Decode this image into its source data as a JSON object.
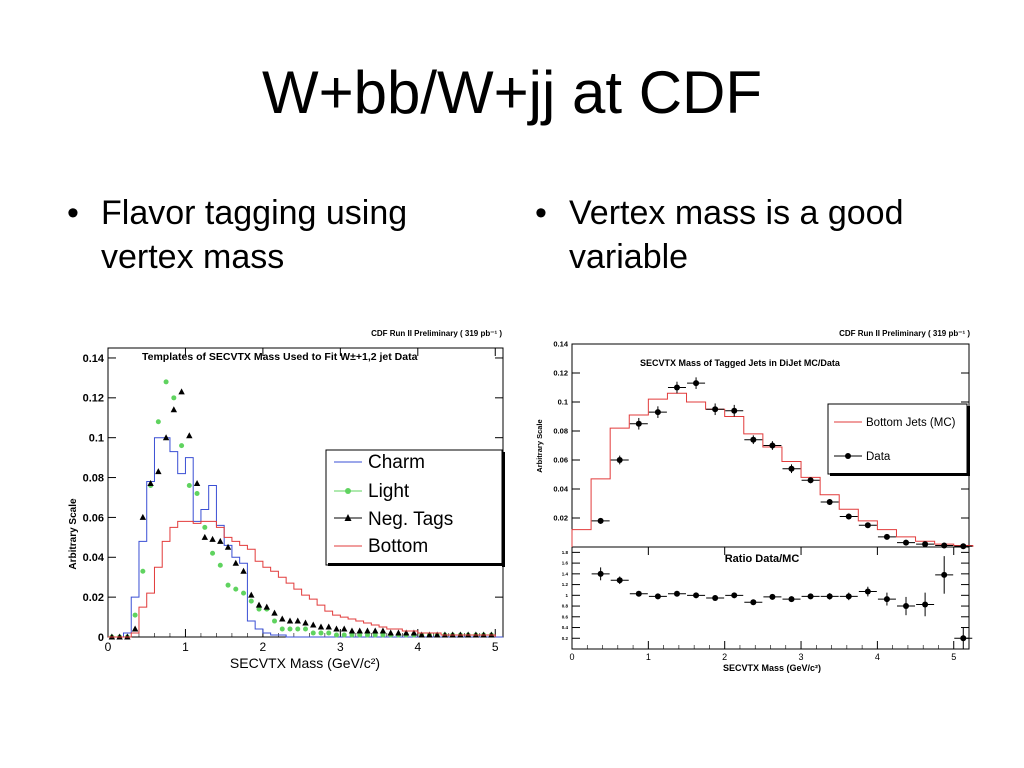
{
  "slide": {
    "title": "W+bb/W+jj at CDF",
    "bullets": [
      {
        "text_line1": "Flavor tagging using",
        "text_line2": "vertex mass"
      },
      {
        "text_line1": "Vertex mass is a good",
        "text_line2": "variable"
      }
    ],
    "bullet_glyph": "•"
  },
  "chart_data": [
    {
      "type": "line",
      "corner_label": "CDF Run II Preliminary ( 319 pb⁻¹ )",
      "title": "Templates of SECVTX Mass Used to Fit W±+1,2 jet Data",
      "xlabel": "SECVTX Mass (GeV/c²)",
      "ylabel": "Arbitrary Scale",
      "xlim": [
        0,
        5.1
      ],
      "ylim": [
        0,
        0.145
      ],
      "xticks": [
        0,
        1,
        2,
        3,
        4,
        5
      ],
      "xtick_labels": [
        "0",
        "1",
        "2",
        "3",
        "4",
        "5"
      ],
      "yticks": [
        0,
        0.02,
        0.04,
        0.06,
        0.08,
        0.1,
        0.12,
        0.14
      ],
      "ytick_labels": [
        "0",
        "0.02",
        "0.04",
        "0.06",
        "0.08",
        "0.1",
        "0.12",
        "0.14"
      ],
      "legend_position": "top-right",
      "bin_width": 0.1,
      "series": [
        {
          "name": "Charm",
          "style": "histogram",
          "color": "#3a4fd4",
          "values": [
            0,
            0,
            0.002,
            0.02,
            0.048,
            0.078,
            0.1,
            0.1,
            0.093,
            0.082,
            0.09,
            0.058,
            0.064,
            0.076,
            0.056,
            0.046,
            0.04,
            0.037,
            0.008,
            0.004,
            0.002,
            0.001,
            0.001,
            0,
            0,
            0,
            0,
            0,
            0,
            0,
            0,
            0,
            0,
            0,
            0,
            0,
            0,
            0,
            0,
            0,
            0,
            0,
            0,
            0,
            0,
            0,
            0,
            0,
            0,
            0,
            0
          ]
        },
        {
          "name": "Light",
          "style": "markers",
          "color": "#5fd35f",
          "values": [
            0,
            0,
            0,
            0.011,
            0.033,
            0.076,
            0.108,
            0.128,
            0.12,
            0.096,
            0.076,
            0.072,
            0.055,
            0.042,
            0.036,
            0.026,
            0.024,
            0.022,
            0.018,
            0.014,
            0.014,
            0.008,
            0.004,
            0.004,
            0.004,
            0.004,
            0.002,
            0.002,
            0.002,
            0.001,
            0.001,
            0.001,
            0.001,
            0.001,
            0.001,
            0.001,
            0.001,
            0.001,
            0.001,
            0.001,
            0.001,
            0.001,
            0.001,
            0.001,
            0.001,
            0.001,
            0.001,
            0.001,
            0.001,
            0.001
          ]
        },
        {
          "name": "Neg. Tags",
          "style": "markers",
          "color": "#000000",
          "values": [
            0,
            0,
            0,
            0.004,
            0.06,
            0.077,
            0.083,
            0.1,
            0.114,
            0.123,
            0.101,
            0.077,
            0.05,
            0.049,
            0.048,
            0.045,
            0.037,
            0.033,
            0.021,
            0.016,
            0.015,
            0.012,
            0.009,
            0.008,
            0.008,
            0.007,
            0.006,
            0.005,
            0.005,
            0.004,
            0.004,
            0.003,
            0.003,
            0.003,
            0.003,
            0.003,
            0.002,
            0.002,
            0.002,
            0.002,
            0.001,
            0.001,
            0.001,
            0.001,
            0.001,
            0.001,
            0.001,
            0.001,
            0.001,
            0.001
          ]
        },
        {
          "name": "Bottom",
          "style": "histogram",
          "color": "#e23b3b",
          "values": [
            0,
            0,
            0,
            0.002,
            0.015,
            0.022,
            0.035,
            0.048,
            0.055,
            0.058,
            0.058,
            0.057,
            0.058,
            0.058,
            0.055,
            0.05,
            0.048,
            0.046,
            0.044,
            0.038,
            0.035,
            0.033,
            0.03,
            0.027,
            0.024,
            0.021,
            0.019,
            0.016,
            0.013,
            0.011,
            0.01,
            0.009,
            0.008,
            0.007,
            0.006,
            0.005,
            0.004,
            0.004,
            0.003,
            0.003,
            0.002,
            0.002,
            0.002,
            0.001,
            0.001,
            0.001,
            0.001,
            0.001,
            0.001,
            0.001
          ]
        }
      ]
    },
    {
      "type": "line",
      "corner_label": "CDF Run II Preliminary ( 319 pb⁻¹ )",
      "title": "SECVTX Mass of Tagged Jets in DiJet MC/Data",
      "ylabel": "Arbitrary Scale",
      "xlim": [
        0,
        5.2
      ],
      "ylim": [
        0,
        0.14
      ],
      "yticks": [
        0.02,
        0.04,
        0.06,
        0.08,
        0.1,
        0.12,
        0.14
      ],
      "ytick_labels": [
        "0.02",
        "0.04",
        "0.06",
        "0.08",
        "0.1",
        "0.12",
        "0.14"
      ],
      "legend_position": "right",
      "bin_edges": [
        0,
        0.25,
        0.5,
        0.75,
        1.0,
        1.25,
        1.5,
        1.75,
        2.0,
        2.25,
        2.5,
        2.75,
        3.0,
        3.25,
        3.5,
        3.75,
        4.0,
        4.25,
        4.5,
        4.75,
        5.0,
        5.25
      ],
      "series": [
        {
          "name": "Bottom Jets (MC)",
          "style": "histogram",
          "color": "#e23b3b",
          "values": [
            0.012,
            0.047,
            0.082,
            0.091,
            0.102,
            0.106,
            0.1,
            0.095,
            0.09,
            0.078,
            0.069,
            0.059,
            0.048,
            0.036,
            0.026,
            0.018,
            0.012,
            0.007,
            0.004,
            0.002,
            0.001
          ]
        },
        {
          "name": "Data",
          "style": "points_with_errors",
          "color": "#000000",
          "x": [
            0.375,
            0.625,
            0.875,
            1.125,
            1.375,
            1.625,
            1.875,
            2.125,
            2.375,
            2.625,
            2.875,
            3.125,
            3.375,
            3.625,
            3.875,
            4.125,
            4.375,
            4.625,
            4.875,
            5.125
          ],
          "y": [
            0.018,
            0.06,
            0.085,
            0.093,
            0.11,
            0.113,
            0.095,
            0.094,
            0.074,
            0.07,
            0.054,
            0.046,
            0.031,
            0.021,
            0.015,
            0.007,
            0.003,
            0.002,
            0.001,
            0.0005
          ],
          "yerr": [
            0.002,
            0.003,
            0.004,
            0.004,
            0.004,
            0.004,
            0.004,
            0.004,
            0.003,
            0.003,
            0.003,
            0.002,
            0.002,
            0.002,
            0.001,
            0.001,
            0.001,
            0.001,
            0.001,
            0.0005
          ]
        }
      ]
    },
    {
      "type": "scatter",
      "title": "Ratio Data/MC",
      "xlabel": "SECVTX Mass (GeV/c²)",
      "xlim": [
        0,
        5.2
      ],
      "ylim": [
        0,
        1.9
      ],
      "xticks": [
        0,
        1,
        2,
        3,
        4,
        5
      ],
      "xtick_labels": [
        "0",
        "1",
        "2",
        "3",
        "4",
        "5"
      ],
      "yticks": [
        0.2,
        0.4,
        0.6,
        0.8,
        1.0,
        1.2,
        1.4,
        1.6,
        1.8
      ],
      "ytick_labels": [
        "0.2",
        "0.4",
        "0.6",
        "0.8",
        "1",
        "1.2",
        "1.4",
        "1.6",
        "1.8"
      ],
      "series": [
        {
          "name": "Ratio",
          "style": "points_with_errors",
          "color": "#000000",
          "x": [
            0.375,
            0.625,
            0.875,
            1.125,
            1.375,
            1.625,
            1.875,
            2.125,
            2.375,
            2.625,
            2.875,
            3.125,
            3.375,
            3.625,
            3.875,
            4.125,
            4.375,
            4.625,
            4.875,
            5.125
          ],
          "y": [
            1.4,
            1.28,
            1.03,
            0.98,
            1.03,
            1.0,
            0.95,
            1.0,
            0.87,
            0.97,
            0.93,
            0.98,
            0.98,
            0.98,
            1.07,
            0.93,
            0.8,
            0.83,
            1.38,
            0.2
          ],
          "yerr": [
            0.12,
            0.07,
            0.05,
            0.05,
            0.04,
            0.04,
            0.04,
            0.04,
            0.05,
            0.05,
            0.05,
            0.05,
            0.06,
            0.07,
            0.09,
            0.12,
            0.17,
            0.22,
            0.35,
            0.2
          ]
        }
      ]
    }
  ]
}
